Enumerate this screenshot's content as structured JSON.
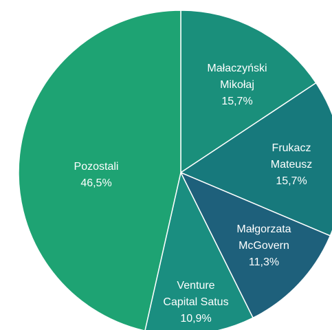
{
  "chart_data": {
    "type": "pie",
    "categories": [
      "Małaczyński Mikołaj",
      "Frukacz Mateusz",
      "Małgorzata McGovern",
      "Venture Capital Satus",
      "Pozostali"
    ],
    "values": [
      15.7,
      15.7,
      11.3,
      10.9,
      46.5
    ],
    "value_labels": [
      "15,7%",
      "15,7%",
      "11,3%",
      "10,9%",
      "46,5%"
    ],
    "colors": [
      "#1a8f7b",
      "#17797c",
      "#1e607b",
      "#1a8e80",
      "#1ea373"
    ]
  }
}
